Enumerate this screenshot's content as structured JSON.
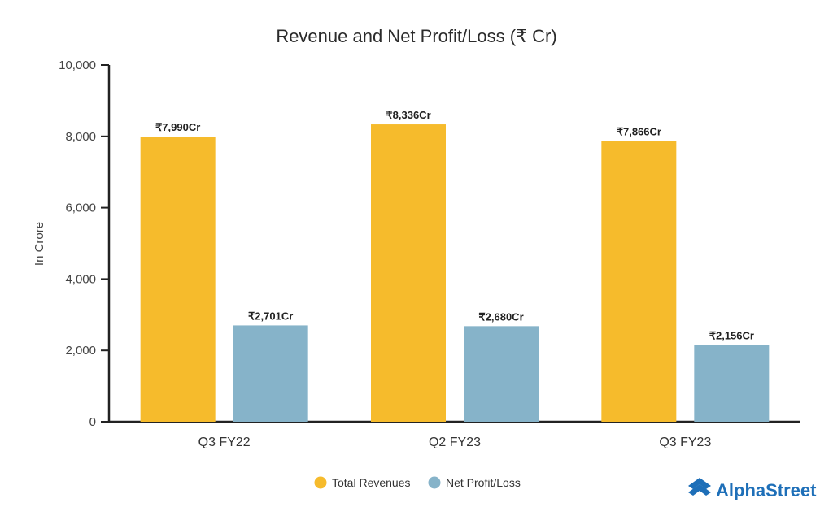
{
  "chart_data": {
    "type": "bar",
    "title": "Revenue and Net Profit/Loss (₹ Cr)",
    "ylabel": "In Crore",
    "xlabel": "",
    "ylim": [
      0,
      10000
    ],
    "yticks": [
      0,
      2000,
      4000,
      6000,
      8000,
      10000
    ],
    "ytick_labels": [
      "0",
      "2,000",
      "4,000",
      "6,000",
      "8,000",
      "10,000"
    ],
    "categories": [
      "Q3 FY22",
      "Q2 FY23",
      "Q3 FY23"
    ],
    "series": [
      {
        "name": "Total Revenues",
        "color": "#F6BB2C",
        "values": [
          7990,
          8336,
          7866
        ],
        "labels": [
          "₹7,990Cr",
          "₹8,336Cr",
          "₹7,866Cr"
        ]
      },
      {
        "name": "Net Profit/Loss",
        "color": "#86B3C9",
        "values": [
          2701,
          2680,
          2156
        ],
        "labels": [
          "₹2,701Cr",
          "₹2,680Cr",
          "₹2,156Cr"
        ]
      }
    ],
    "grid": false,
    "legend_position": "bottom-center"
  },
  "brand": {
    "name": "AlphaStreet",
    "color": "#1E6FB8",
    "icon": "alphastreet-logo-icon"
  }
}
